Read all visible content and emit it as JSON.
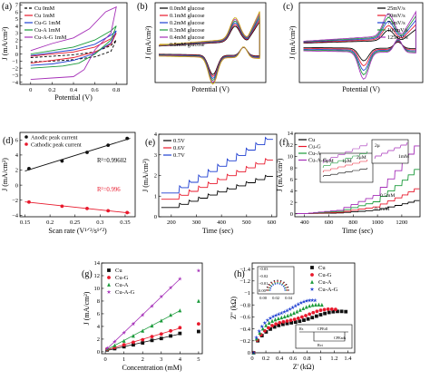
{
  "chart_data": [
    {
      "id": "a",
      "type": "line",
      "panel_label": "(a)",
      "xlabel": "Potential (V)",
      "ylabel": "J (mA/cm²)",
      "xlim": [
        -0.1,
        0.9
      ],
      "ylim": [
        -4.3,
        7.3
      ],
      "xticks": [
        0.0,
        0.2,
        0.4,
        0.6,
        0.8
      ],
      "yticks": [
        -4,
        -3,
        -2,
        -1,
        0,
        1,
        2,
        3,
        4,
        5,
        6,
        7
      ],
      "legend_position": "top-left",
      "series": [
        {
          "name": "Cu 0mM",
          "color": "#000000",
          "dash": "3,2",
          "points": [
            [
              0.0,
              -0.5
            ],
            [
              0.2,
              -0.3
            ],
            [
              0.4,
              -0.1
            ],
            [
              0.6,
              0.3
            ],
            [
              0.75,
              1.2
            ],
            [
              0.8,
              2.0
            ],
            [
              0.75,
              0.4
            ],
            [
              0.6,
              -0.4
            ],
            [
              0.4,
              -0.8
            ],
            [
              0.2,
              -1.0
            ],
            [
              0.0,
              -1.1
            ]
          ]
        },
        {
          "name": "Cu 1mM",
          "color": "#e8192c",
          "points": [
            [
              0.0,
              -0.3
            ],
            [
              0.2,
              0.0
            ],
            [
              0.4,
              0.3
            ],
            [
              0.6,
              1.0
            ],
            [
              0.75,
              2.2
            ],
            [
              0.8,
              3.0
            ],
            [
              0.75,
              1.4
            ],
            [
              0.6,
              0.3
            ],
            [
              0.4,
              -0.5
            ],
            [
              0.2,
              -0.9
            ],
            [
              0.0,
              -1.3
            ]
          ]
        },
        {
          "name": "Cu-G 1mM",
          "color": "#1f3fd1",
          "points": [
            [
              0.0,
              -0.2
            ],
            [
              0.2,
              0.2
            ],
            [
              0.4,
              0.6
            ],
            [
              0.6,
              1.4
            ],
            [
              0.75,
              2.7
            ],
            [
              0.8,
              3.3
            ],
            [
              0.75,
              1.6
            ],
            [
              0.6,
              0.1
            ],
            [
              0.4,
              -0.9
            ],
            [
              0.2,
              -1.4
            ],
            [
              0.0,
              -1.6
            ]
          ]
        },
        {
          "name": "Cu-A 1mM",
          "color": "#1a9a3a",
          "points": [
            [
              0.0,
              0.0
            ],
            [
              0.2,
              0.5
            ],
            [
              0.4,
              1.0
            ],
            [
              0.6,
              2.0
            ],
            [
              0.75,
              3.3
            ],
            [
              0.8,
              4.0
            ],
            [
              0.75,
              2.0
            ],
            [
              0.6,
              0.0
            ],
            [
              0.45,
              -1.3
            ],
            [
              0.3,
              -1.7
            ],
            [
              0.0,
              -2.0
            ]
          ]
        },
        {
          "name": "Cu-A-G 1mM",
          "color": "#a52fb8",
          "points": [
            [
              0.0,
              0.5
            ],
            [
              0.2,
              1.5
            ],
            [
              0.4,
              2.3
            ],
            [
              0.55,
              3.6
            ],
            [
              0.7,
              6.0
            ],
            [
              0.8,
              6.7
            ],
            [
              0.75,
              3.0
            ],
            [
              0.6,
              0.6
            ],
            [
              0.5,
              -2.2
            ],
            [
              0.4,
              -3.2
            ],
            [
              0.2,
              -3.4
            ],
            [
              0.0,
              -3.6
            ]
          ]
        }
      ]
    },
    {
      "id": "b",
      "type": "line",
      "panel_label": "(b)",
      "xlabel": "Potential (V)",
      "ylabel": "J (mA/cm²)",
      "xlim": [
        -0.05,
        0.85
      ],
      "ylim": [
        -1.3,
        1.8
      ],
      "legend_position": "top-left",
      "series": [
        {
          "name": "0.0mM glucose",
          "color": "#000000",
          "scale": 0.8
        },
        {
          "name": "0.1mM glucose",
          "color": "#e8192c",
          "scale": 0.86
        },
        {
          "name": "0.2mM glucose",
          "color": "#1f3fd1",
          "scale": 0.92
        },
        {
          "name": "0.3mM glucose",
          "color": "#1a9a3a",
          "scale": 0.98
        },
        {
          "name": "0.4mM glucose",
          "color": "#a52fb8",
          "scale": 1.04
        },
        {
          "name": "0.5mM glucose",
          "color": "#c9a10e",
          "scale": 1.1
        }
      ]
    },
    {
      "id": "c",
      "type": "line",
      "panel_label": "(c)",
      "xlabel": "Potential (V)",
      "ylabel": "J (mA/cm²)",
      "xlim": [
        -0.05,
        0.85
      ],
      "ylim": [
        -1.8,
        2.0
      ],
      "legend_position": "top-right",
      "series": [
        {
          "name": "25mV/s",
          "color": "#000000",
          "scale": 0.55
        },
        {
          "name": "50mV/s",
          "color": "#e8192c",
          "scale": 0.72
        },
        {
          "name": "75mV/s",
          "color": "#1f3fd1",
          "scale": 0.88
        },
        {
          "name": "100mV/s",
          "color": "#1a9a3a",
          "scale": 1.03
        },
        {
          "name": "125mV/s",
          "color": "#a52fb8",
          "scale": 1.18
        }
      ]
    },
    {
      "id": "d",
      "type": "scatter",
      "panel_label": "(d)",
      "xlabel": "Scan rate (V¹ᐟ²/s¹ᐟ²)",
      "ylabel": "J (mA/cm²)",
      "xlim": [
        0.14,
        0.37
      ],
      "ylim": [
        -4.2,
        7.0
      ],
      "xticks": [
        0.15,
        0.2,
        0.25,
        0.3,
        0.35
      ],
      "yticks": [
        -4,
        -2,
        0,
        2,
        4,
        6
      ],
      "legend_position": "top-left",
      "series": [
        {
          "name": "Anodic peak current",
          "color": "#111111",
          "x": [
            0.158,
            0.224,
            0.274,
            0.316,
            0.354
          ],
          "y": [
            2.2,
            3.2,
            4.35,
            5.3,
            6.2
          ]
        },
        {
          "name": "Cathodic peak current",
          "color": "#e8192c",
          "x": [
            0.158,
            0.224,
            0.274,
            0.316,
            0.354
          ],
          "y": [
            -2.25,
            -2.8,
            -3.1,
            -3.4,
            -3.65
          ]
        }
      ],
      "annotations": [
        {
          "text": "R²=0.99602",
          "color": "#000000"
        },
        {
          "text": "R²=0.996",
          "color": "#e8192c"
        }
      ]
    },
    {
      "id": "e",
      "type": "line",
      "panel_label": "(e)",
      "xlabel": "Time (sec)",
      "ylabel": "J (mA/cm²)",
      "xlim": [
        150,
        620
      ],
      "ylim": [
        0,
        4
      ],
      "xticks": [
        200,
        300,
        400,
        500,
        600
      ],
      "yticks": [
        0,
        1,
        2,
        3,
        4
      ],
      "legend_position": "top-left",
      "steps": {
        "start": 230,
        "interval": 38,
        "count": 10
      },
      "series": [
        {
          "name": "0.5V",
          "color": "#000000",
          "base": 0.45,
          "step": 0.15
        },
        {
          "name": "0.6V",
          "color": "#e8192c",
          "base": 0.85,
          "step": 0.19
        },
        {
          "name": "0.7V",
          "color": "#1f3fd1",
          "base": 1.15,
          "step": 0.26
        }
      ]
    },
    {
      "id": "f",
      "type": "line",
      "panel_label": "(f)",
      "xlabel": "Time (sec)",
      "ylabel": "J (mA/cm²)",
      "xlim": [
        320,
        1350
      ],
      "ylim": [
        -0.5,
        14
      ],
      "xticks": [
        400,
        600,
        800,
        1000,
        1200
      ],
      "yticks": [
        0,
        2,
        4,
        6,
        8,
        10,
        12,
        14
      ],
      "legend_position": "top-left",
      "series": [
        {
          "name": "Cu",
          "color": "#000000",
          "gain": 0.22
        },
        {
          "name": "Cu-G",
          "color": "#e8192c",
          "gain": 0.42
        },
        {
          "name": "Cu-A",
          "color": "#1a9a3a",
          "gain": 0.75
        },
        {
          "name": "Cu-A-G",
          "color": "#a52fb8",
          "gain": 1.15
        }
      ],
      "annotations": [
        {
          "text": "0.1mM",
          "color": "#000000"
        },
        {
          "text": "0.5mM",
          "color": "#000000"
        },
        {
          "text": "1mM",
          "color": "#000000"
        },
        {
          "text": "5μM",
          "color": "#000000"
        },
        {
          "text": "1μM",
          "color": "#000000"
        },
        {
          "text": "2μM",
          "color": "#000000"
        },
        {
          "text": "2μ",
          "color": "#000000"
        }
      ]
    },
    {
      "id": "g",
      "type": "scatter",
      "panel_label": "(g)",
      "xlabel": "Concentration (mM)",
      "ylabel": "J (mA/cm²)",
      "xlim": [
        -0.2,
        5.2
      ],
      "ylim": [
        -0.3,
        14
      ],
      "xticks": [
        0,
        1,
        2,
        3,
        4,
        5
      ],
      "yticks": [
        0,
        2,
        4,
        6,
        8,
        10,
        12,
        14
      ],
      "legend_position": "top-left",
      "series": [
        {
          "name": "Cu",
          "color": "#111111",
          "marker": "square",
          "x": [
            0.1,
            0.5,
            1,
            1.5,
            2,
            2.5,
            3,
            3.5,
            4,
            5
          ],
          "y": [
            0.3,
            0.5,
            0.8,
            1.1,
            1.4,
            1.8,
            2.1,
            2.5,
            2.9,
            3.2
          ]
        },
        {
          "name": "Cu-G",
          "color": "#e8192c",
          "marker": "circle",
          "x": [
            0.1,
            0.5,
            1,
            1.5,
            2,
            2.5,
            3,
            3.5,
            4,
            5
          ],
          "y": [
            0.4,
            0.7,
            1.1,
            1.5,
            1.9,
            2.4,
            2.8,
            3.3,
            3.8,
            4.4
          ]
        },
        {
          "name": "Cu-A",
          "color": "#1a9a3a",
          "marker": "triangle",
          "x": [
            0.1,
            0.5,
            1,
            1.5,
            2,
            2.5,
            3,
            3.5,
            4,
            5
          ],
          "y": [
            0.5,
            1.0,
            1.7,
            2.5,
            3.3,
            4.1,
            4.9,
            5.8,
            6.5,
            8.0
          ]
        },
        {
          "name": "Cu-A-G",
          "color": "#a52fb8",
          "marker": "star",
          "x": [
            0.1,
            0.5,
            1,
            1.5,
            2,
            2.5,
            3,
            3.5,
            4,
            5
          ],
          "y": [
            0.6,
            1.6,
            3.0,
            4.4,
            5.8,
            7.2,
            8.7,
            10.1,
            11.5,
            12.8
          ]
        }
      ]
    },
    {
      "id": "h",
      "type": "scatter",
      "panel_label": "(h)",
      "xlabel": "Z' (kΩ)",
      "ylabel": "Z'' (kΩ)",
      "xlim": [
        0,
        1.5
      ],
      "ylim": [
        0,
        -1.5
      ],
      "xticks": [
        0.0,
        0.2,
        0.4,
        0.6,
        0.8,
        1.0,
        1.2,
        1.4
      ],
      "yticks": [
        0.0,
        -0.2,
        -0.4,
        -0.6,
        -0.8,
        -1.0,
        -1.2,
        -1.4
      ],
      "legend_position": "top-right",
      "series": [
        {
          "name": "Cu",
          "color": "#111111",
          "marker": "square",
          "reach": 1.35,
          "height": 0.9
        },
        {
          "name": "Cu-G",
          "color": "#e8192c",
          "marker": "circle",
          "reach": 1.2,
          "height": 0.95
        },
        {
          "name": "Cu-A",
          "color": "#1a9a3a",
          "marker": "triangle",
          "reach": 1.0,
          "height": 1.05
        },
        {
          "name": "Cu-A-G",
          "color": "#1f3fd1",
          "marker": "star",
          "reach": 0.9,
          "height": 1.15
        }
      ],
      "inset": {
        "xticks": [
          0.0,
          0.02,
          0.04
        ],
        "yticks": [
          -0.0,
          -0.01,
          -0.02,
          -0.03
        ],
        "circuit_labels": [
          "Rs",
          "CPEdl",
          "Rct",
          "CPEads"
        ]
      }
    }
  ]
}
